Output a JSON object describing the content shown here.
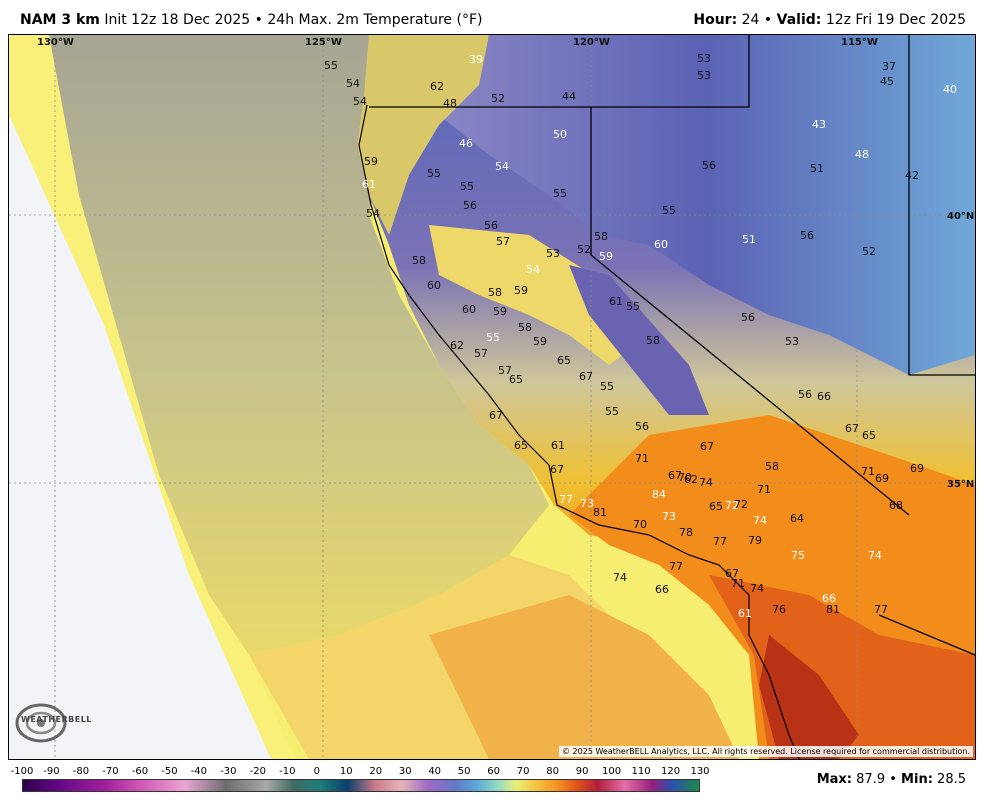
{
  "header": {
    "model": "NAM 3 km",
    "init": "Init 12z 18 Dec 2025",
    "separator": "•",
    "product": "24h Max. 2m Temperature (°F)",
    "hour_label": "Hour:",
    "hour_value": "24",
    "valid_label": "Valid:",
    "valid_value": "12z Fri 19 Dec 2025"
  },
  "map": {
    "coordinate_labels": [
      "130°W",
      "125°W",
      "120°W",
      "115°W",
      "40°N",
      "35°N"
    ],
    "temperature_labels": [
      "55",
      "54",
      "54",
      "62",
      "48",
      "39",
      "52",
      "44",
      "53",
      "53",
      "37",
      "45",
      "40",
      "59",
      "46",
      "50",
      "43",
      "48",
      "61",
      "55",
      "55",
      "54",
      "56",
      "51",
      "42",
      "54",
      "56",
      "55",
      "55",
      "56",
      "57",
      "53",
      "52",
      "58",
      "59",
      "60",
      "51",
      "56",
      "52",
      "58",
      "60",
      "58",
      "54",
      "59",
      "60",
      "59",
      "58",
      "61",
      "55",
      "56",
      "53",
      "55",
      "62",
      "57",
      "59",
      "58",
      "65",
      "57",
      "65",
      "67",
      "55",
      "55",
      "56",
      "56",
      "66",
      "67",
      "65",
      "61",
      "67",
      "71",
      "58",
      "69",
      "67",
      "65",
      "67",
      "62",
      "74",
      "70",
      "69",
      "67",
      "77",
      "73",
      "81",
      "84",
      "65",
      "72",
      "72",
      "71",
      "71",
      "68",
      "70",
      "73",
      "78",
      "74",
      "64",
      "75",
      "77",
      "79",
      "74",
      "77",
      "74",
      "67",
      "71",
      "74",
      "66",
      "81",
      "61",
      "76",
      "66",
      "77",
      "77",
      "76",
      "75"
    ],
    "copyright": "© 2025 WeatherBELL Analytics, LLC. All rights reserved. License required for commercial distribution.",
    "logo_text": "WEATHERBELL",
    "colors": {
      "ocean_cold": "#f3f5f8",
      "ocean_gray": "#a8a692",
      "ocean_yellow": "#f6ed6c",
      "land_warm": "#f59a1f",
      "land_hot": "#d94e10",
      "land_cool": "#6b63b0",
      "land_cold": "#4e79c2"
    }
  },
  "scale": {
    "ticks": [
      "-100",
      "-90",
      "-80",
      "-70",
      "-60",
      "-50",
      "-40",
      "-30",
      "-20",
      "-10",
      "0",
      "10",
      "20",
      "30",
      "40",
      "50",
      "60",
      "70",
      "80",
      "90",
      "100",
      "110",
      "120",
      "130"
    ]
  },
  "stats": {
    "max_label": "Max:",
    "max_value": "87.9",
    "separator": "•",
    "min_label": "Min:",
    "min_value": "28.5"
  }
}
